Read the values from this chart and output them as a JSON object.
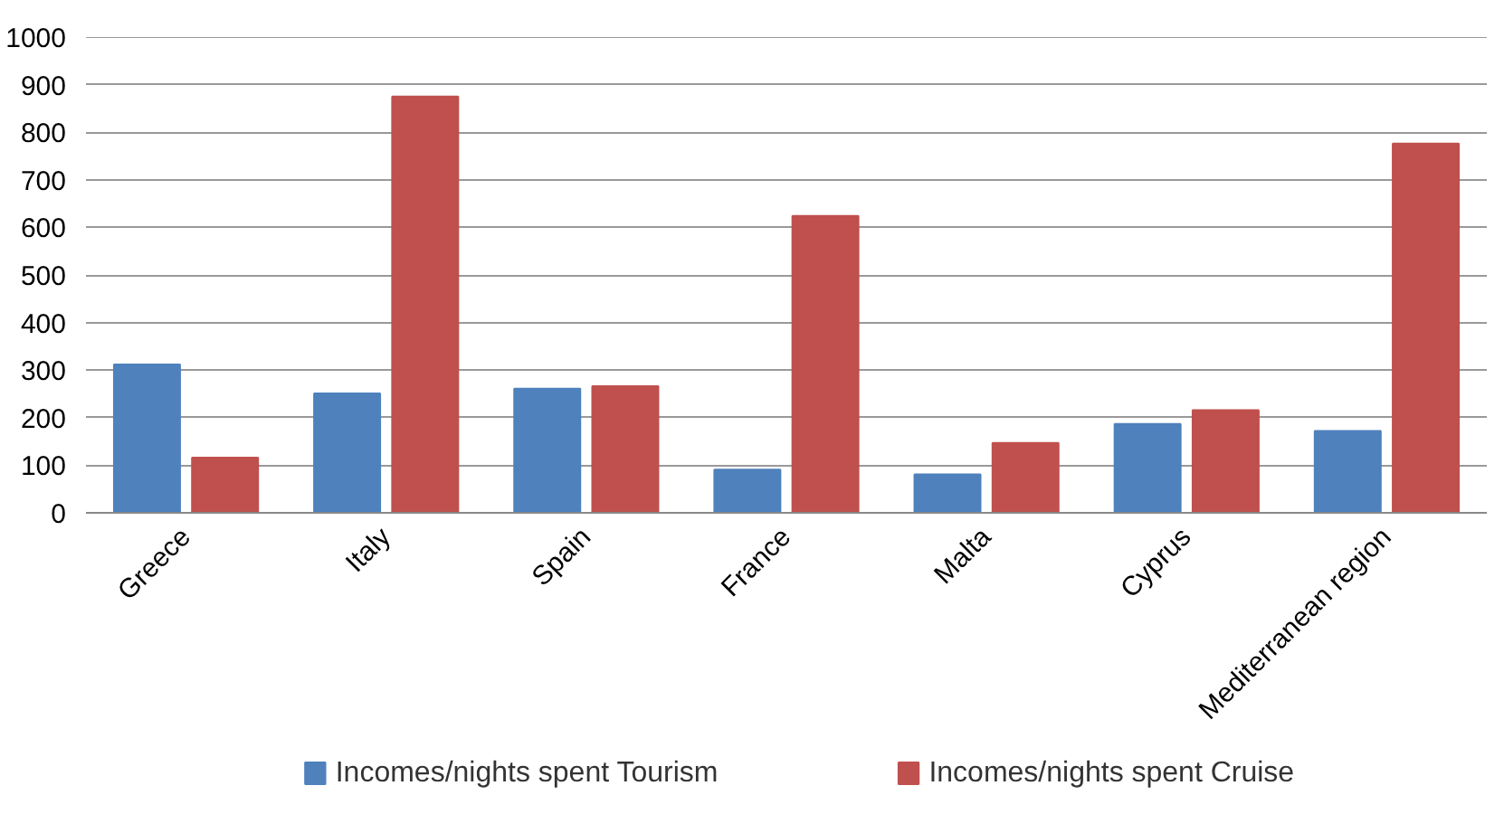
{
  "chart_data": {
    "type": "bar",
    "categories": [
      "Greece",
      "Italy",
      "Spain",
      "France",
      "Malta",
      "Cyprus",
      "Mediterranean region"
    ],
    "series": [
      {
        "name": "Incomes/nights spent Tourism",
        "color": "#4f81bd",
        "values": [
          312,
          251,
          261,
          91,
          81,
          187,
          172
        ]
      },
      {
        "name": "Incomes/nights spent Cruise",
        "color": "#c0504d",
        "values": [
          116,
          875,
          266,
          624,
          147,
          216,
          776
        ]
      }
    ],
    "ylim": [
      0,
      1000
    ],
    "yticks": [
      0,
      100,
      200,
      300,
      400,
      500,
      600,
      700,
      800,
      900,
      1000
    ],
    "grid": "y",
    "legend": "bottom"
  }
}
